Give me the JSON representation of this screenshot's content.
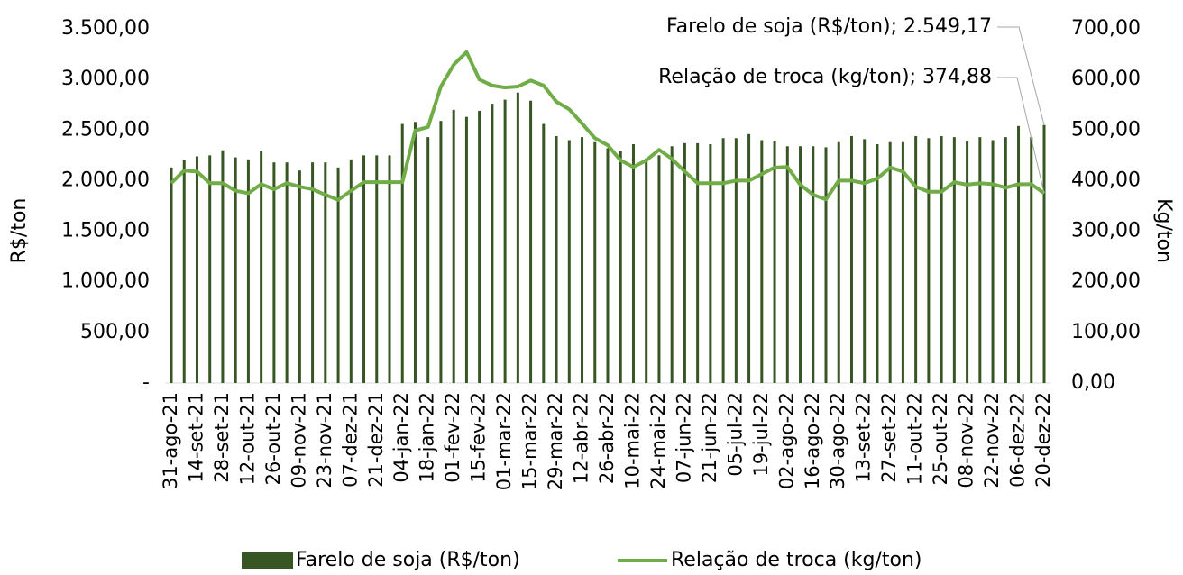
{
  "chart_data": {
    "type": "bar_line",
    "categories": [
      "31-ago-21",
      null,
      "14-set-21",
      null,
      "28-set-21",
      null,
      "12-out-21",
      null,
      "26-out-21",
      null,
      "09-nov-21",
      null,
      "23-nov-21",
      null,
      "07-dez-21",
      null,
      "21-dez-21",
      null,
      "04-jan-22",
      null,
      "18-jan-22",
      null,
      "01-fev-22",
      null,
      "15-fev-22",
      null,
      "01-mar-22",
      null,
      "15-mar-22",
      null,
      "29-mar-22",
      null,
      "12-abr-22",
      null,
      "26-abr-22",
      null,
      "10-mai-22",
      null,
      "24-mai-22",
      null,
      "07-jun-22",
      null,
      "21-jun-22",
      null,
      "05-jul-22",
      null,
      "19-jul-22",
      null,
      "02-ago-22",
      null,
      "16-ago-22",
      null,
      "30-ago-22",
      null,
      "13-set-22",
      null,
      "27-set-22",
      null,
      "11-out-22",
      null,
      "25-out-22",
      null,
      "08-nov-22",
      null,
      "22-nov-22",
      null,
      "06-dez-22",
      null,
      "20-dez-22"
    ],
    "series": [
      {
        "name": "Farelo de soja (R$/ton)",
        "color": "#375623",
        "type": "bar",
        "values": [
          2130,
          2200,
          2240,
          2250,
          2300,
          2230,
          2210,
          2290,
          2180,
          2180,
          2100,
          2180,
          2180,
          2130,
          2210,
          2250,
          2250,
          2250,
          2560,
          2580,
          2430,
          2590,
          2700,
          2630,
          2690,
          2760,
          2800,
          2870,
          2790,
          2560,
          2440,
          2400,
          2430,
          2380,
          2320,
          2290,
          2360,
          2220,
          2250,
          2340,
          2370,
          2370,
          2360,
          2420,
          2420,
          2460,
          2400,
          2390,
          2340,
          2340,
          2340,
          2330,
          2380,
          2440,
          2410,
          2360,
          2380,
          2380,
          2440,
          2420,
          2440,
          2430,
          2390,
          2430,
          2400,
          2430,
          2540,
          2430,
          2549.17
        ]
      },
      {
        "name": "Relação de troca (kg/ton)",
        "color": "#70ad47",
        "type": "line",
        "axis": "y2",
        "values": [
          395,
          420,
          418,
          395,
          395,
          380,
          375,
          393,
          383,
          395,
          388,
          383,
          372,
          362,
          380,
          397,
          397,
          397,
          397,
          499,
          506,
          586,
          629,
          654,
          600,
          588,
          584,
          586,
          598,
          588,
          556,
          541,
          513,
          484,
          470,
          440,
          427,
          440,
          461,
          443,
          418,
          395,
          395,
          395,
          400,
          400,
          413,
          426,
          427,
          392,
          372,
          363,
          400,
          400,
          395,
          404,
          426,
          418,
          388,
          378,
          378,
          397,
          392,
          395,
          393,
          386,
          393,
          393,
          374.88
        ]
      }
    ],
    "annotations": [
      "Farelo de soja (R$/ton); 2.549,17",
      "Relação de troca (kg/ton); 374,88"
    ],
    "ylabel": "R$/ton",
    "y2label": "Kg/ton",
    "ylim": [
      0,
      3500
    ],
    "yticks": [
      {
        "value": 0,
        "label": "-"
      },
      {
        "value": 500,
        "label": "500,00"
      },
      {
        "value": 1000,
        "label": "1.000,00"
      },
      {
        "value": 1500,
        "label": "1.500,00"
      },
      {
        "value": 2000,
        "label": "2.000,00"
      },
      {
        "value": 2500,
        "label": "2.500,00"
      },
      {
        "value": 3000,
        "label": "3.000,00"
      },
      {
        "value": 3500,
        "label": "3.500,00"
      }
    ],
    "y2lim": [
      0,
      700
    ],
    "y2ticks": [
      {
        "value": 0,
        "label": "0,00"
      },
      {
        "value": 100,
        "label": "100,00"
      },
      {
        "value": 200,
        "label": "200,00"
      },
      {
        "value": 300,
        "label": "300,00"
      },
      {
        "value": 400,
        "label": "400,00"
      },
      {
        "value": 500,
        "label": "500,00"
      },
      {
        "value": 600,
        "label": "600,00"
      },
      {
        "value": 700,
        "label": "700,00"
      }
    ],
    "grid": false,
    "legend": "bottom"
  }
}
